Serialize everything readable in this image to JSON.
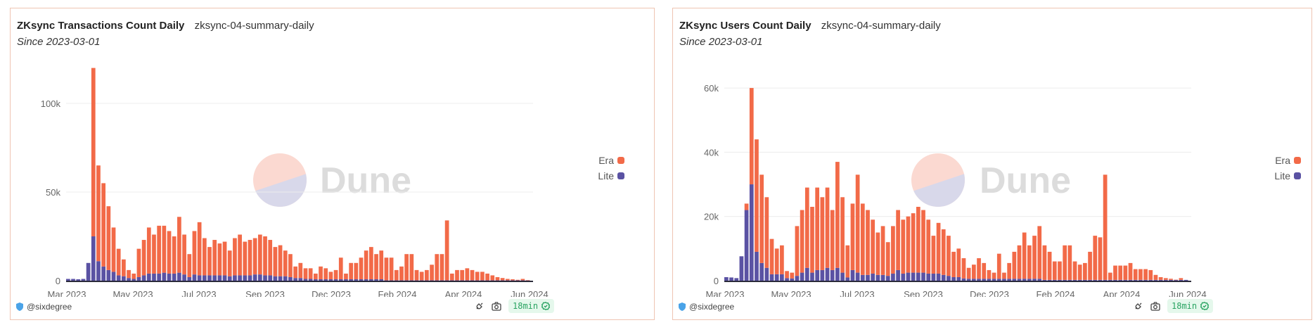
{
  "panels": [
    {
      "title": "ZKsync Transactions Count Daily",
      "query": "zksync-04-summary-daily",
      "subtitle": "Since 2023-03-01",
      "author": "@sixdegree",
      "refresh": "18min",
      "icons": {
        "author": "shield-icon",
        "embed": "plug-icon",
        "screenshot": "camera-icon",
        "status": "check-circle-icon"
      },
      "watermark": "Dune"
    },
    {
      "title": "ZKsync Users Count Daily",
      "query": "zksync-04-summary-daily",
      "subtitle": "Since 2023-03-01",
      "author": "@sixdegree",
      "refresh": "18min",
      "icons": {
        "author": "shield-icon",
        "embed": "plug-icon",
        "screenshot": "camera-icon",
        "status": "check-circle-icon"
      },
      "watermark": "Dune"
    }
  ],
  "colors": {
    "Era": "#f26a48",
    "Lite": "#5a52a3",
    "border": "#efc4b2",
    "badge_text": "#2aa462",
    "badge_bg": "#e5f8ec"
  },
  "chart_data": [
    {
      "type": "bar",
      "stacked": true,
      "title": "ZKsync Transactions Count Daily",
      "xlabel": "",
      "ylabel": "",
      "xlim": [
        "2023-03-01",
        "2024-06-01"
      ],
      "ylim": [
        0,
        125000
      ],
      "grid": true,
      "legend": "right",
      "x_tick_labels": [
        "Mar 2023",
        "May 2023",
        "Jul 2023",
        "Sep 2023",
        "Dec 2023",
        "Feb 2024",
        "Apr 2024",
        "Jun 2024"
      ],
      "y_ticks": [
        0,
        50000,
        100000
      ],
      "y_tick_labels": [
        "0",
        "50k",
        "100k"
      ],
      "x": [
        "2023-03-01",
        "2023-03-06",
        "2023-03-11",
        "2023-03-16",
        "2023-03-21",
        "2023-03-26",
        "2023-03-31",
        "2023-04-05",
        "2023-04-10",
        "2023-04-15",
        "2023-04-20",
        "2023-04-25",
        "2023-04-30",
        "2023-05-05",
        "2023-05-10",
        "2023-05-15",
        "2023-05-20",
        "2023-05-25",
        "2023-05-30",
        "2023-06-04",
        "2023-06-09",
        "2023-06-14",
        "2023-06-19",
        "2023-06-24",
        "2023-06-29",
        "2023-07-04",
        "2023-07-09",
        "2023-07-14",
        "2023-07-19",
        "2023-07-24",
        "2023-07-29",
        "2023-08-03",
        "2023-08-08",
        "2023-08-13",
        "2023-08-18",
        "2023-08-23",
        "2023-08-28",
        "2023-09-02",
        "2023-09-07",
        "2023-09-12",
        "2023-09-17",
        "2023-09-22",
        "2023-09-27",
        "2023-10-02",
        "2023-10-07",
        "2023-10-12",
        "2023-10-17",
        "2023-10-22",
        "2023-10-27",
        "2023-11-01",
        "2023-11-06",
        "2023-11-11",
        "2023-11-16",
        "2023-11-21",
        "2023-11-26",
        "2023-12-01",
        "2023-12-06",
        "2023-12-11",
        "2023-12-16",
        "2023-12-21",
        "2023-12-26",
        "2023-12-31",
        "2024-01-05",
        "2024-01-10",
        "2024-01-15",
        "2024-01-20",
        "2024-01-25",
        "2024-01-30",
        "2024-02-04",
        "2024-02-09",
        "2024-02-14",
        "2024-02-19",
        "2024-02-24",
        "2024-02-29",
        "2024-03-05",
        "2024-03-10",
        "2024-03-15",
        "2024-03-20",
        "2024-03-25",
        "2024-03-30",
        "2024-04-04",
        "2024-04-09",
        "2024-04-14",
        "2024-04-19",
        "2024-04-24",
        "2024-04-29",
        "2024-05-04",
        "2024-05-09",
        "2024-05-14",
        "2024-05-19",
        "2024-05-24",
        "2024-05-29"
      ],
      "series": [
        {
          "name": "Lite",
          "values": [
            1000,
            1000,
            800,
            1000,
            10000,
            25000,
            11000,
            8000,
            6000,
            5000,
            3000,
            2500,
            1500,
            1000,
            2000,
            3000,
            4000,
            4000,
            4000,
            4500,
            4000,
            4000,
            4500,
            3500,
            2000,
            3500,
            3000,
            3000,
            3000,
            3000,
            3000,
            3000,
            2500,
            3000,
            3000,
            3000,
            3000,
            3500,
            3500,
            3000,
            3000,
            2500,
            2500,
            2500,
            2000,
            1500,
            1500,
            1000,
            1000,
            800,
            800,
            800,
            800,
            800,
            800,
            800,
            800,
            800,
            800,
            800,
            800,
            800,
            800,
            200,
            200,
            200,
            200,
            200,
            200,
            200,
            200,
            200,
            200,
            200,
            200,
            200,
            200,
            200,
            200,
            200,
            200,
            200,
            200,
            200,
            200,
            200,
            200,
            200,
            200,
            200,
            200,
            200
          ]
        },
        {
          "name": "Era",
          "values": [
            0,
            0,
            0,
            0,
            0,
            95000,
            54000,
            47000,
            36000,
            25000,
            15000,
            9500,
            4500,
            3000,
            16000,
            20000,
            26000,
            22000,
            27000,
            26500,
            24000,
            21000,
            31500,
            22500,
            13000,
            24500,
            30000,
            21000,
            16000,
            20000,
            18000,
            19000,
            14500,
            21000,
            23000,
            19000,
            20000,
            20500,
            22500,
            22000,
            20000,
            16500,
            17500,
            14500,
            13000,
            6500,
            8500,
            6000,
            6000,
            3200,
            7200,
            6200,
            4200,
            5200,
            12200,
            3200,
            9200,
            9200,
            12200,
            16200,
            18200,
            14200,
            16200,
            12800,
            12800,
            5800,
            7800,
            14800,
            14800,
            5800,
            4800,
            5800,
            8800,
            14800,
            14800,
            33800,
            3800,
            5800,
            5800,
            6800,
            5800,
            4800,
            4800,
            3800,
            2800,
            1800,
            1300,
            800,
            600,
            300,
            800,
            100
          ]
        }
      ]
    },
    {
      "type": "bar",
      "stacked": true,
      "title": "ZKsync Users Count Daily",
      "xlabel": "",
      "ylabel": "",
      "xlim": [
        "2023-03-01",
        "2024-06-01"
      ],
      "ylim": [
        0,
        69000
      ],
      "grid": true,
      "legend": "right",
      "x_tick_labels": [
        "Mar 2023",
        "May 2023",
        "Jul 2023",
        "Sep 2023",
        "Dec 2023",
        "Feb 2024",
        "Apr 2024",
        "Jun 2024"
      ],
      "y_ticks": [
        0,
        20000,
        40000,
        60000
      ],
      "y_tick_labels": [
        "0",
        "20k",
        "40k",
        "60k"
      ],
      "x": [
        "2023-03-01",
        "2023-03-06",
        "2023-03-11",
        "2023-03-16",
        "2023-03-21",
        "2023-03-26",
        "2023-03-31",
        "2023-04-05",
        "2023-04-10",
        "2023-04-15",
        "2023-04-20",
        "2023-04-25",
        "2023-04-30",
        "2023-05-05",
        "2023-05-10",
        "2023-05-15",
        "2023-05-20",
        "2023-05-25",
        "2023-05-30",
        "2023-06-04",
        "2023-06-09",
        "2023-06-14",
        "2023-06-19",
        "2023-06-24",
        "2023-06-29",
        "2023-07-04",
        "2023-07-09",
        "2023-07-14",
        "2023-07-19",
        "2023-07-24",
        "2023-07-29",
        "2023-08-03",
        "2023-08-08",
        "2023-08-13",
        "2023-08-18",
        "2023-08-23",
        "2023-08-28",
        "2023-09-02",
        "2023-09-07",
        "2023-09-12",
        "2023-09-17",
        "2023-09-22",
        "2023-09-27",
        "2023-10-02",
        "2023-10-07",
        "2023-10-12",
        "2023-10-17",
        "2023-10-22",
        "2023-10-27",
        "2023-11-01",
        "2023-11-06",
        "2023-11-11",
        "2023-11-16",
        "2023-11-21",
        "2023-11-26",
        "2023-12-01",
        "2023-12-06",
        "2023-12-11",
        "2023-12-16",
        "2023-12-21",
        "2023-12-26",
        "2023-12-31",
        "2024-01-05",
        "2024-01-10",
        "2024-01-15",
        "2024-01-20",
        "2024-01-25",
        "2024-01-30",
        "2024-02-04",
        "2024-02-09",
        "2024-02-14",
        "2024-02-19",
        "2024-02-24",
        "2024-02-29",
        "2024-03-05",
        "2024-03-10",
        "2024-03-15",
        "2024-03-20",
        "2024-03-25",
        "2024-03-30",
        "2024-04-04",
        "2024-04-09",
        "2024-04-14",
        "2024-04-19",
        "2024-04-24",
        "2024-04-29",
        "2024-05-04",
        "2024-05-09",
        "2024-05-14",
        "2024-05-19",
        "2024-05-24",
        "2024-05-29"
      ],
      "series": [
        {
          "name": "Lite",
          "values": [
            1100,
            1000,
            800,
            7600,
            22000,
            30000,
            9000,
            5500,
            4000,
            2000,
            2000,
            2000,
            800,
            700,
            1500,
            2500,
            4000,
            2500,
            3300,
            3300,
            4000,
            3300,
            4000,
            2500,
            1000,
            3300,
            2500,
            1800,
            1800,
            2200,
            1800,
            1800,
            1500,
            2200,
            3300,
            2200,
            2500,
            2500,
            2500,
            2500,
            2200,
            2200,
            2200,
            1800,
            1500,
            1100,
            1100,
            700,
            600,
            600,
            600,
            600,
            600,
            600,
            600,
            600,
            600,
            600,
            600,
            600,
            600,
            600,
            600,
            250,
            250,
            250,
            250,
            250,
            250,
            250,
            250,
            250,
            250,
            250,
            250,
            250,
            250,
            250,
            250,
            250,
            250,
            250,
            250,
            250,
            250,
            250,
            250,
            250,
            250,
            250,
            250,
            250
          ]
        },
        {
          "name": "Era",
          "values": [
            0,
            0,
            0,
            0,
            2000,
            30000,
            35000,
            27500,
            22000,
            11000,
            8000,
            9000,
            2200,
            1800,
            15500,
            19500,
            25000,
            20500,
            25700,
            22700,
            25000,
            18700,
            33000,
            23500,
            10000,
            20700,
            30500,
            22200,
            20200,
            16800,
            13200,
            15200,
            10500,
            14800,
            18700,
            16800,
            17500,
            18500,
            20500,
            19500,
            16800,
            11800,
            15800,
            14200,
            12500,
            7900,
            8900,
            6300,
            3400,
            4400,
            6400,
            4900,
            2700,
            1900,
            7800,
            1900,
            4900,
            8400,
            10400,
            14400,
            10400,
            13400,
            16400,
            10750,
            8750,
            5750,
            5750,
            10750,
            10750,
            5750,
            4750,
            5250,
            8750,
            13750,
            13250,
            32750,
            2250,
            4450,
            4450,
            4450,
            5250,
            3350,
            3350,
            3350,
            3050,
            1550,
            850,
            550,
            350,
            50,
            550,
            0
          ]
        }
      ]
    }
  ]
}
